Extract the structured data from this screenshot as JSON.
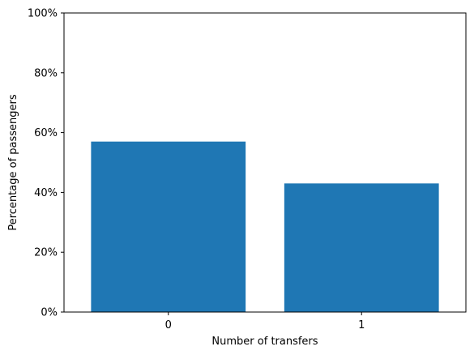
{
  "chart_data": {
    "type": "bar",
    "categories": [
      "0",
      "1"
    ],
    "values": [
      57,
      43
    ],
    "title": "",
    "xlabel": "Number of transfers",
    "ylabel": "Percentage of passengers",
    "ylim": [
      0,
      100
    ],
    "yticks": [
      0,
      20,
      40,
      60,
      80,
      100
    ],
    "ytick_labels": [
      "0%",
      "20%",
      "40%",
      "60%",
      "80%",
      "100%"
    ],
    "bar_color": "#1f77b4",
    "grid": false,
    "legend": "none"
  }
}
